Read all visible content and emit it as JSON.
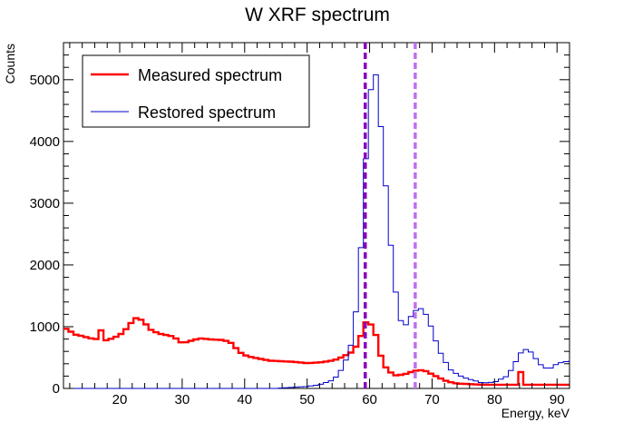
{
  "chart_data": {
    "type": "line",
    "title": "W XRF spectrum",
    "xlabel": "Energy, keV",
    "ylabel": "Counts",
    "xlim": [
      11,
      92
    ],
    "ylim": [
      0,
      5600
    ],
    "x_ticks": [
      20,
      30,
      40,
      50,
      60,
      70,
      80,
      90
    ],
    "y_ticks": [
      0,
      1000,
      2000,
      3000,
      4000,
      5000
    ],
    "bin_width": 0.8,
    "legend_position": "top-left",
    "series": [
      {
        "name": "Measured spectrum",
        "color": "#ff0000",
        "style": "step-thick",
        "points": [
          [
            11,
            990
          ],
          [
            12,
            930
          ],
          [
            13,
            870
          ],
          [
            14,
            850
          ],
          [
            15,
            820
          ],
          [
            16,
            800
          ],
          [
            16.8,
            800
          ],
          [
            17.2,
            1080
          ],
          [
            17.8,
            780
          ],
          [
            18.5,
            800
          ],
          [
            19.5,
            840
          ],
          [
            20.5,
            900
          ],
          [
            21.5,
            1020
          ],
          [
            22.4,
            1140
          ],
          [
            23.2,
            1130
          ],
          [
            24,
            1060
          ],
          [
            25,
            950
          ],
          [
            26,
            900
          ],
          [
            27,
            870
          ],
          [
            28,
            860
          ],
          [
            29,
            810
          ],
          [
            30,
            730
          ],
          [
            31,
            760
          ],
          [
            32,
            790
          ],
          [
            33,
            810
          ],
          [
            34,
            800
          ],
          [
            35,
            790
          ],
          [
            36,
            790
          ],
          [
            37,
            770
          ],
          [
            38,
            730
          ],
          [
            39,
            600
          ],
          [
            40,
            540
          ],
          [
            41,
            510
          ],
          [
            42,
            490
          ],
          [
            43,
            470
          ],
          [
            44,
            450
          ],
          [
            46,
            440
          ],
          [
            48,
            430
          ],
          [
            50,
            410
          ],
          [
            52,
            420
          ],
          [
            54,
            450
          ],
          [
            55,
            480
          ],
          [
            56,
            530
          ],
          [
            57,
            580
          ],
          [
            58,
            700
          ],
          [
            58.8,
            900
          ],
          [
            59.4,
            1070
          ],
          [
            60,
            1060
          ],
          [
            60.7,
            970
          ],
          [
            61.3,
            760
          ],
          [
            61.8,
            530
          ],
          [
            62.3,
            380
          ],
          [
            63,
            290
          ],
          [
            64,
            210
          ],
          [
            65,
            220
          ],
          [
            66,
            240
          ],
          [
            67,
            280
          ],
          [
            68,
            300
          ],
          [
            69,
            280
          ],
          [
            70,
            230
          ],
          [
            71,
            180
          ],
          [
            72,
            130
          ],
          [
            73,
            100
          ],
          [
            74,
            80
          ],
          [
            76,
            70
          ],
          [
            78,
            60
          ],
          [
            80,
            60
          ],
          [
            82,
            60
          ],
          [
            83.5,
            60
          ],
          [
            84,
            370
          ],
          [
            84.6,
            60
          ],
          [
            86,
            60
          ],
          [
            88,
            60
          ],
          [
            90,
            60
          ],
          [
            92,
            60
          ]
        ]
      },
      {
        "name": "Restored spectrum",
        "color": "#0000cc",
        "style": "step-thin",
        "points": [
          [
            11,
            0
          ],
          [
            45,
            0
          ],
          [
            48,
            20
          ],
          [
            50,
            30
          ],
          [
            52,
            60
          ],
          [
            54,
            130
          ],
          [
            55,
            220
          ],
          [
            56,
            400
          ],
          [
            57,
            700
          ],
          [
            57.5,
            1000
          ],
          [
            58,
            1400
          ],
          [
            58.5,
            2100
          ],
          [
            59,
            3000
          ],
          [
            59.5,
            3900
          ],
          [
            60,
            4700
          ],
          [
            60.5,
            5050
          ],
          [
            61,
            5080
          ],
          [
            61.5,
            4600
          ],
          [
            62,
            4000
          ],
          [
            62.5,
            3400
          ],
          [
            63,
            2800
          ],
          [
            63.5,
            2200
          ],
          [
            64,
            1700
          ],
          [
            64.5,
            1350
          ],
          [
            65,
            1100
          ],
          [
            65.5,
            1000
          ],
          [
            66,
            1050
          ],
          [
            66.5,
            1150
          ],
          [
            67,
            1230
          ],
          [
            67.5,
            1270
          ],
          [
            68,
            1300
          ],
          [
            68.5,
            1280
          ],
          [
            69,
            1200
          ],
          [
            69.5,
            1100
          ],
          [
            70,
            950
          ],
          [
            70.5,
            800
          ],
          [
            71,
            650
          ],
          [
            72,
            450
          ],
          [
            73,
            300
          ],
          [
            74,
            230
          ],
          [
            75,
            180
          ],
          [
            76,
            150
          ],
          [
            78,
            90
          ],
          [
            80,
            100
          ],
          [
            82,
            200
          ],
          [
            83,
            350
          ],
          [
            84,
            560
          ],
          [
            85,
            630
          ],
          [
            86,
            580
          ],
          [
            87,
            420
          ],
          [
            88,
            330
          ],
          [
            89,
            330
          ],
          [
            90,
            400
          ],
          [
            91,
            430
          ],
          [
            92,
            440
          ]
        ]
      }
    ],
    "reference_lines": [
      {
        "x": 59.3,
        "color": "#8800bb",
        "style": "dashed-thick"
      },
      {
        "x": 67.3,
        "color": "#c070ee",
        "style": "dashed-thick"
      }
    ]
  }
}
